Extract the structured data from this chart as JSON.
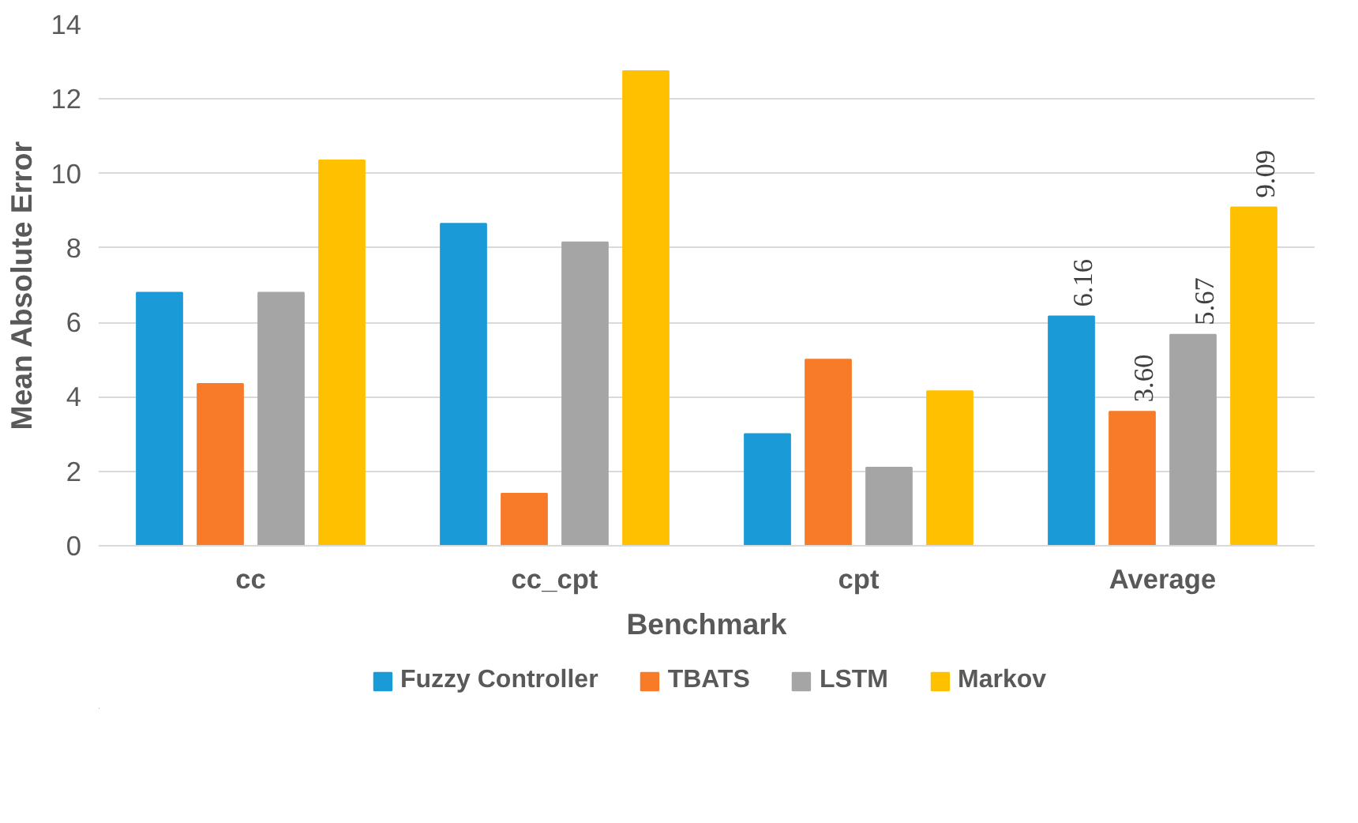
{
  "chart_data": {
    "type": "bar",
    "xlabel": "Benchmark",
    "ylabel": "Mean Absolute Error",
    "categories": [
      "cc",
      "cc_cpt",
      "cpt",
      "Average"
    ],
    "series": [
      {
        "name": "Fuzzy Controller",
        "color": "#1a9ad6",
        "values": [
          6.8,
          8.65,
          3.0,
          6.16
        ],
        "value_labels": [
          null,
          null,
          null,
          "6.16"
        ]
      },
      {
        "name": "TBATS",
        "color": "#f77b29",
        "values": [
          4.35,
          1.4,
          5.0,
          3.6
        ],
        "value_labels": [
          null,
          null,
          null,
          "3.60"
        ]
      },
      {
        "name": "LSTM",
        "color": "#a5a5a5",
        "values": [
          6.8,
          8.15,
          2.1,
          5.67
        ],
        "value_labels": [
          null,
          null,
          null,
          "5.67"
        ]
      },
      {
        "name": "Markov",
        "color": "#ffc000",
        "values": [
          10.35,
          12.75,
          4.15,
          9.09
        ],
        "value_labels": [
          null,
          null,
          null,
          "9.09"
        ]
      }
    ],
    "ylim": [
      0,
      14
    ],
    "yticks": [
      0,
      2,
      4,
      6,
      8,
      10,
      12,
      14
    ],
    "grid": "y",
    "legend": "bottom"
  }
}
